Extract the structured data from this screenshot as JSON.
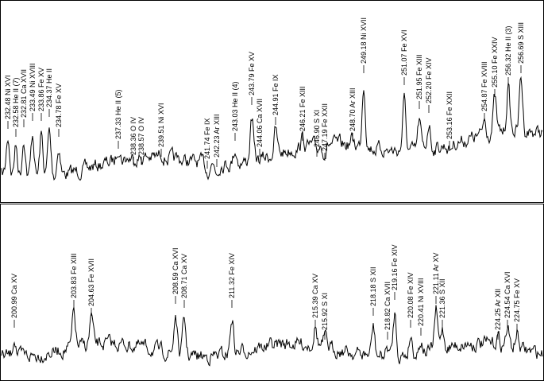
{
  "panels": [
    {
      "labels": [
        "232.48 Ni XVI",
        "232.58 He II (7)",
        "232.81 Ca XVII",
        "233.49 Ni XVIII",
        "233.86 Fe XV",
        "234.37 He II",
        "234.78 Fe XV",
        "237.33 He II (5)",
        "238.36 O IV",
        "238.57 O IV",
        "239.51 Ni XVI",
        "241.74 Fe IX",
        "242.23 Ar XIII",
        "243.03 He II (4)",
        "243.79 Fe XV",
        "244.06 Ca XVII",
        "244.91 Fe IX",
        "246.21 Fe XIII",
        "246.90 S XI",
        "247.19 Fe XXII",
        "248.70 Ar XIII",
        "249.18 Ni XVII",
        "251.07 Fe XVI",
        "251.95 Fe XIII",
        "252.20 Fe XIV",
        "253.16 Fe XXII",
        "254.87 Fe XVIII",
        "255.10 Fe XXIV",
        "256.32 He II (3)",
        "256.69 S XIII"
      ]
    },
    {
      "labels": [
        "200.99 Ca XV",
        "203.83 Fe XIII",
        "204.63 Fe XVII",
        "208.59 Ca XVI",
        "208.71 Ca XV",
        "211.32 Fe XIV",
        "215.39 Ca XV",
        "215.92 S XI",
        "218.18 S XII",
        "218.82 Ca XVII",
        "219.16 Fe XIV",
        "220.08 Fe XIV",
        "220.41 Ni XVIII",
        "221.11 Ar XV",
        "221.36 S XII",
        "224.25 Ar XII",
        "224.54 Ca XVI",
        "224.75 Fe XV"
      ]
    }
  ]
}
